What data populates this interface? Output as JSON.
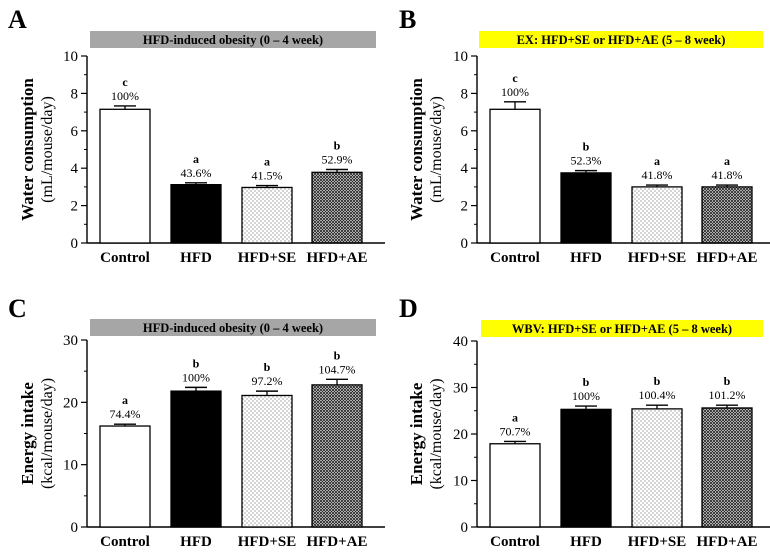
{
  "colors": {
    "gray_banner": "#a6a6a6",
    "yellow_banner": "#ffff00"
  },
  "chart_data": [
    {
      "panel": "A",
      "type": "bar",
      "title": "HFD-induced obesity (0 – 4 week)",
      "banner_color": "#a6a6a6",
      "ylabel_main": "Water consumption",
      "ylabel_unit": "(mL/mouse/day)",
      "ylim": [
        0,
        10
      ],
      "yticks": [
        0,
        2,
        4,
        6,
        8,
        10
      ],
      "categories": [
        "Control",
        "HFD",
        "HFD+SE",
        "HFD+AE"
      ],
      "values": [
        7.15,
        3.12,
        2.97,
        3.78
      ],
      "errors": [
        0.18,
        0.1,
        0.1,
        0.15
      ],
      "percent_labels": [
        "100%",
        "43.6%",
        "41.5%",
        "52.9%"
      ],
      "significance": [
        "c",
        "a",
        "a",
        "b"
      ],
      "fills": [
        "white",
        "black",
        "dots",
        "crosshatch"
      ]
    },
    {
      "panel": "B",
      "type": "bar",
      "title": "EX: HFD+SE or HFD+AE (5 – 8 week)",
      "banner_color": "#ffff00",
      "ylabel_main": "Water consumption",
      "ylabel_unit": "(mL/mouse/day)",
      "ylim": [
        0,
        10
      ],
      "yticks": [
        0,
        2,
        4,
        6,
        8,
        10
      ],
      "categories": [
        "Control",
        "HFD",
        "HFD+SE",
        "HFD+AE"
      ],
      "values": [
        7.15,
        3.75,
        3.0,
        3.0
      ],
      "errors": [
        0.4,
        0.12,
        0.1,
        0.1
      ],
      "percent_labels": [
        "100%",
        "52.3%",
        "41.8%",
        "41.8%"
      ],
      "significance": [
        "c",
        "b",
        "a",
        "a"
      ],
      "fills": [
        "white",
        "black",
        "dots",
        "crosshatch"
      ]
    },
    {
      "panel": "C",
      "type": "bar",
      "title": "HFD-induced obesity (0 – 4 week)",
      "banner_color": "#a6a6a6",
      "ylabel_main": "Energy intake",
      "ylabel_unit": "(kcal/mouse/day)",
      "ylim": [
        0,
        30
      ],
      "yticks": [
        0,
        10,
        20,
        30
      ],
      "categories": [
        "Control",
        "HFD",
        "HFD+SE",
        "HFD+AE"
      ],
      "values": [
        16.2,
        21.8,
        21.1,
        22.8
      ],
      "errors": [
        0.3,
        0.6,
        0.7,
        0.9
      ],
      "percent_labels": [
        "74.4%",
        "100%",
        "97.2%",
        "104.7%"
      ],
      "significance": [
        "a",
        "b",
        "b",
        "b"
      ],
      "fills": [
        "white",
        "black",
        "dots",
        "crosshatch"
      ]
    },
    {
      "panel": "D",
      "type": "bar",
      "title": "WBV: HFD+SE or HFD+AE (5 – 8 week)",
      "banner_color": "#ffff00",
      "ylabel_main": "Energy intake",
      "ylabel_unit": "(kcal/mouse/day)",
      "ylim": [
        0,
        40
      ],
      "yticks": [
        0,
        10,
        20,
        30,
        40
      ],
      "categories": [
        "Control",
        "HFD",
        "HFD+SE",
        "HFD+AE"
      ],
      "values": [
        17.9,
        25.3,
        25.4,
        25.6
      ],
      "errors": [
        0.5,
        0.7,
        0.8,
        0.6
      ],
      "percent_labels": [
        "70.7%",
        "100%",
        "100.4%",
        "101.2%"
      ],
      "significance": [
        "a",
        "b",
        "b",
        "b"
      ],
      "fills": [
        "white",
        "black",
        "dots",
        "crosshatch"
      ]
    }
  ]
}
